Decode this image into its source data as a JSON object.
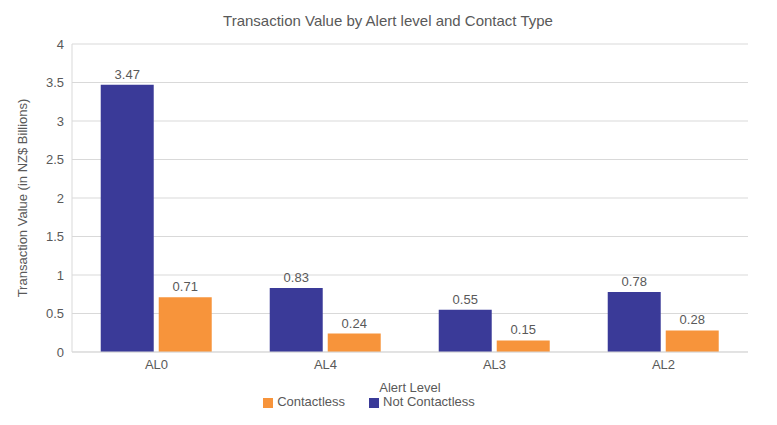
{
  "chart_data": {
    "type": "bar",
    "title": "Transaction Value by Alert level and Contact Type",
    "x_label": "Alert Level",
    "y_label": "Transaction Value (in NZ$ Billions)",
    "categories": [
      "AL0",
      "AL4",
      "AL3",
      "AL2"
    ],
    "series": [
      {
        "name": "Not Contactless",
        "color": "#3a3a98",
        "values": [
          3.47,
          0.83,
          0.55,
          0.78
        ]
      },
      {
        "name": "Contactless",
        "color": "#f7943b",
        "values": [
          0.71,
          0.24,
          0.15,
          0.28
        ]
      }
    ],
    "ylim": [
      0,
      4
    ],
    "yticks": [
      0,
      0.5,
      1,
      1.5,
      2,
      2.5,
      3,
      3.5,
      4
    ],
    "grid": true,
    "legend": "bottom",
    "data_labels": true
  }
}
